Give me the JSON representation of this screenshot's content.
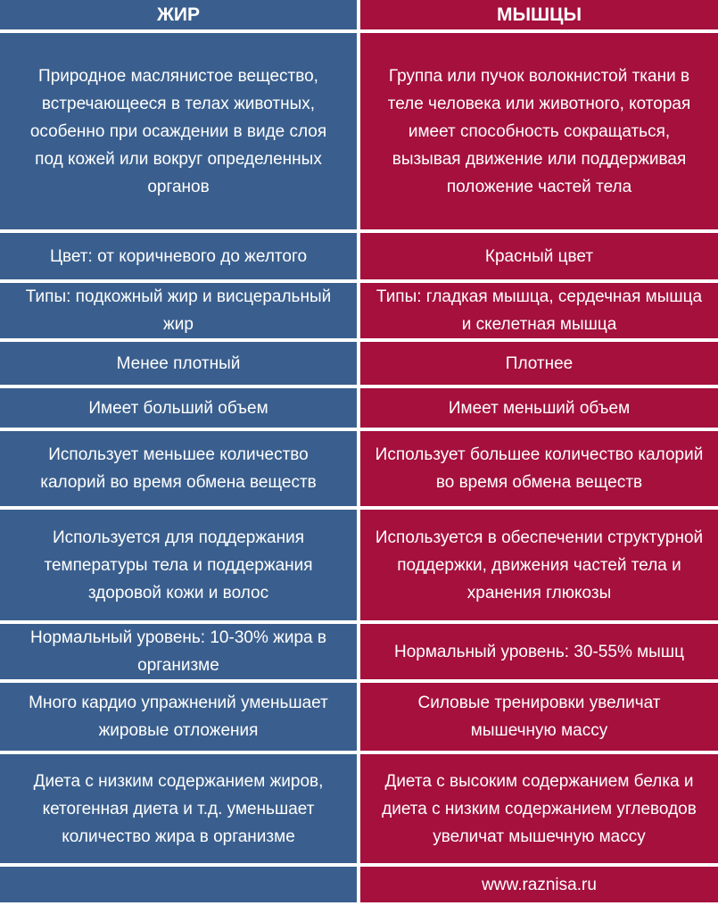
{
  "header": {
    "fat": "ЖИР",
    "muscle": "МЫШЦЫ"
  },
  "rows": [
    {
      "fat": "Природное маслянистое вещество, встречающееся в телах животных, особенно при осаждении в виде слоя под кожей или вокруг определенных органов",
      "muscle": "Группа или пучок волокнистой ткани в теле человека или животного, которая имеет способность сокращаться, вызывая движение или поддерживая положение частей тела"
    },
    {
      "fat": "Цвет: от коричневого до желтого",
      "muscle": "Красный цвет"
    },
    {
      "fat": "Типы: подкожный жир и висцеральный жир",
      "muscle": "Типы: гладкая мышца, сердечная мышца и скелетная мышца"
    },
    {
      "fat": "Менее плотный",
      "muscle": "Плотнее"
    },
    {
      "fat": "Имеет больший объем",
      "muscle": "Имеет меньший объем"
    },
    {
      "fat": "Использует меньшее количество калорий во время обмена веществ",
      "muscle": "Использует большее количество калорий во время обмена веществ"
    },
    {
      "fat": "Используется для поддержания температуры тела и поддержания здоровой кожи и волос",
      "muscle": "Используется в обеспечении структурной поддержки, движения частей тела и хранения глюкозы"
    },
    {
      "fat": "Нормальный уровень: 10-30% жира в организме",
      "muscle": "Нормальный уровень: 30-55% мышц"
    },
    {
      "fat": "Много кардио упражнений уменьшает жировые отложения",
      "muscle": "Силовые тренировки увеличат мышечную массу"
    },
    {
      "fat": "Диета с низким содержанием жиров, кетогенная диета и т.д. уменьшает количество жира в организме",
      "muscle": "Диета с высоким содержанием белка и диета с низким содержанием углеводов увеличат мышечную массу"
    },
    {
      "fat": "",
      "muscle": "www.raznisa.ru"
    }
  ],
  "colors": {
    "fat_column": "#3a5f8e",
    "muscle_column": "#a5103d",
    "text": "#ffffff"
  }
}
